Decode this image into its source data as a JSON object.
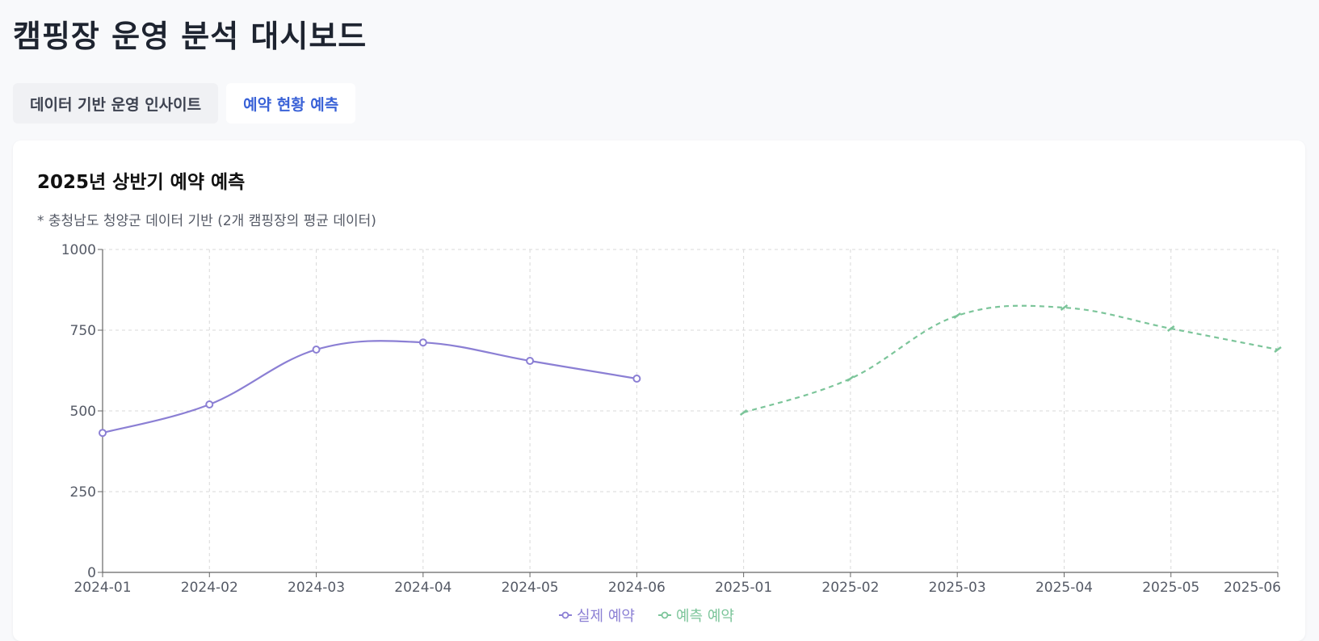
{
  "page": {
    "title": "캠핑장 운영 분석 대시보드"
  },
  "tabs": [
    {
      "label": "데이터 기반 운영 인사이트",
      "active": false
    },
    {
      "label": "예약 현황 예측",
      "active": true
    }
  ],
  "card": {
    "title": "2025년 상반기 예약 예측",
    "note": "* 충청남도 청양군 데이터 기반 (2개 캠핑장의 평균 데이터)"
  },
  "colors": {
    "actual": "#8b7fd4",
    "forecast": "#7cc59a",
    "active_tab": "#3a62d7"
  },
  "chart_data": {
    "type": "line",
    "categories": [
      "2024-01",
      "2024-02",
      "2024-03",
      "2024-04",
      "2024-05",
      "2024-06",
      "2025-01",
      "2025-02",
      "2025-03",
      "2025-04",
      "2025-05",
      "2025-06"
    ],
    "series": [
      {
        "name": "실제 예약",
        "values": [
          432,
          520,
          690,
          712,
          655,
          600,
          null,
          null,
          null,
          null,
          null,
          null
        ],
        "style": "solid",
        "markers": true
      },
      {
        "name": "예측 예약",
        "values": [
          null,
          null,
          null,
          null,
          null,
          null,
          495,
          600,
          795,
          820,
          755,
          690
        ],
        "style": "dashed",
        "markers": true
      }
    ],
    "ylim": [
      0,
      1000
    ],
    "yticks": [
      0,
      250,
      500,
      750,
      1000
    ],
    "grid": true,
    "legend": "bottom-center"
  }
}
